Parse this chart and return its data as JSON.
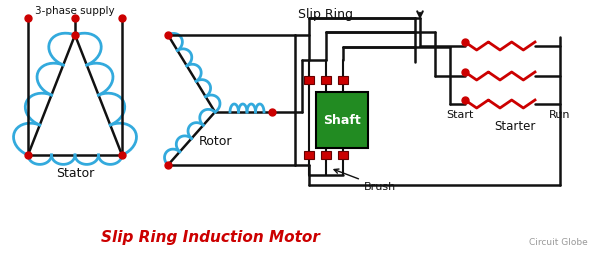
{
  "title": "Slip Ring Induction Motor",
  "title_color": "#cc0000",
  "title_fontsize": 11,
  "watermark": "Circuit Globe",
  "bg_color": "#ffffff",
  "label_stator": "Stator",
  "label_rotor": "Rotor",
  "label_slip_ring": "Slip Ring",
  "label_brush": "Brush",
  "label_shaft": "Shaft",
  "label_start": "Start",
  "label_run": "Run",
  "label_starter": "Starter",
  "label_3phase": "3-phase supply",
  "red": "#cc0000",
  "blue": "#33aadd",
  "green": "#009933",
  "black": "#111111",
  "shaft_green": "#228B22"
}
